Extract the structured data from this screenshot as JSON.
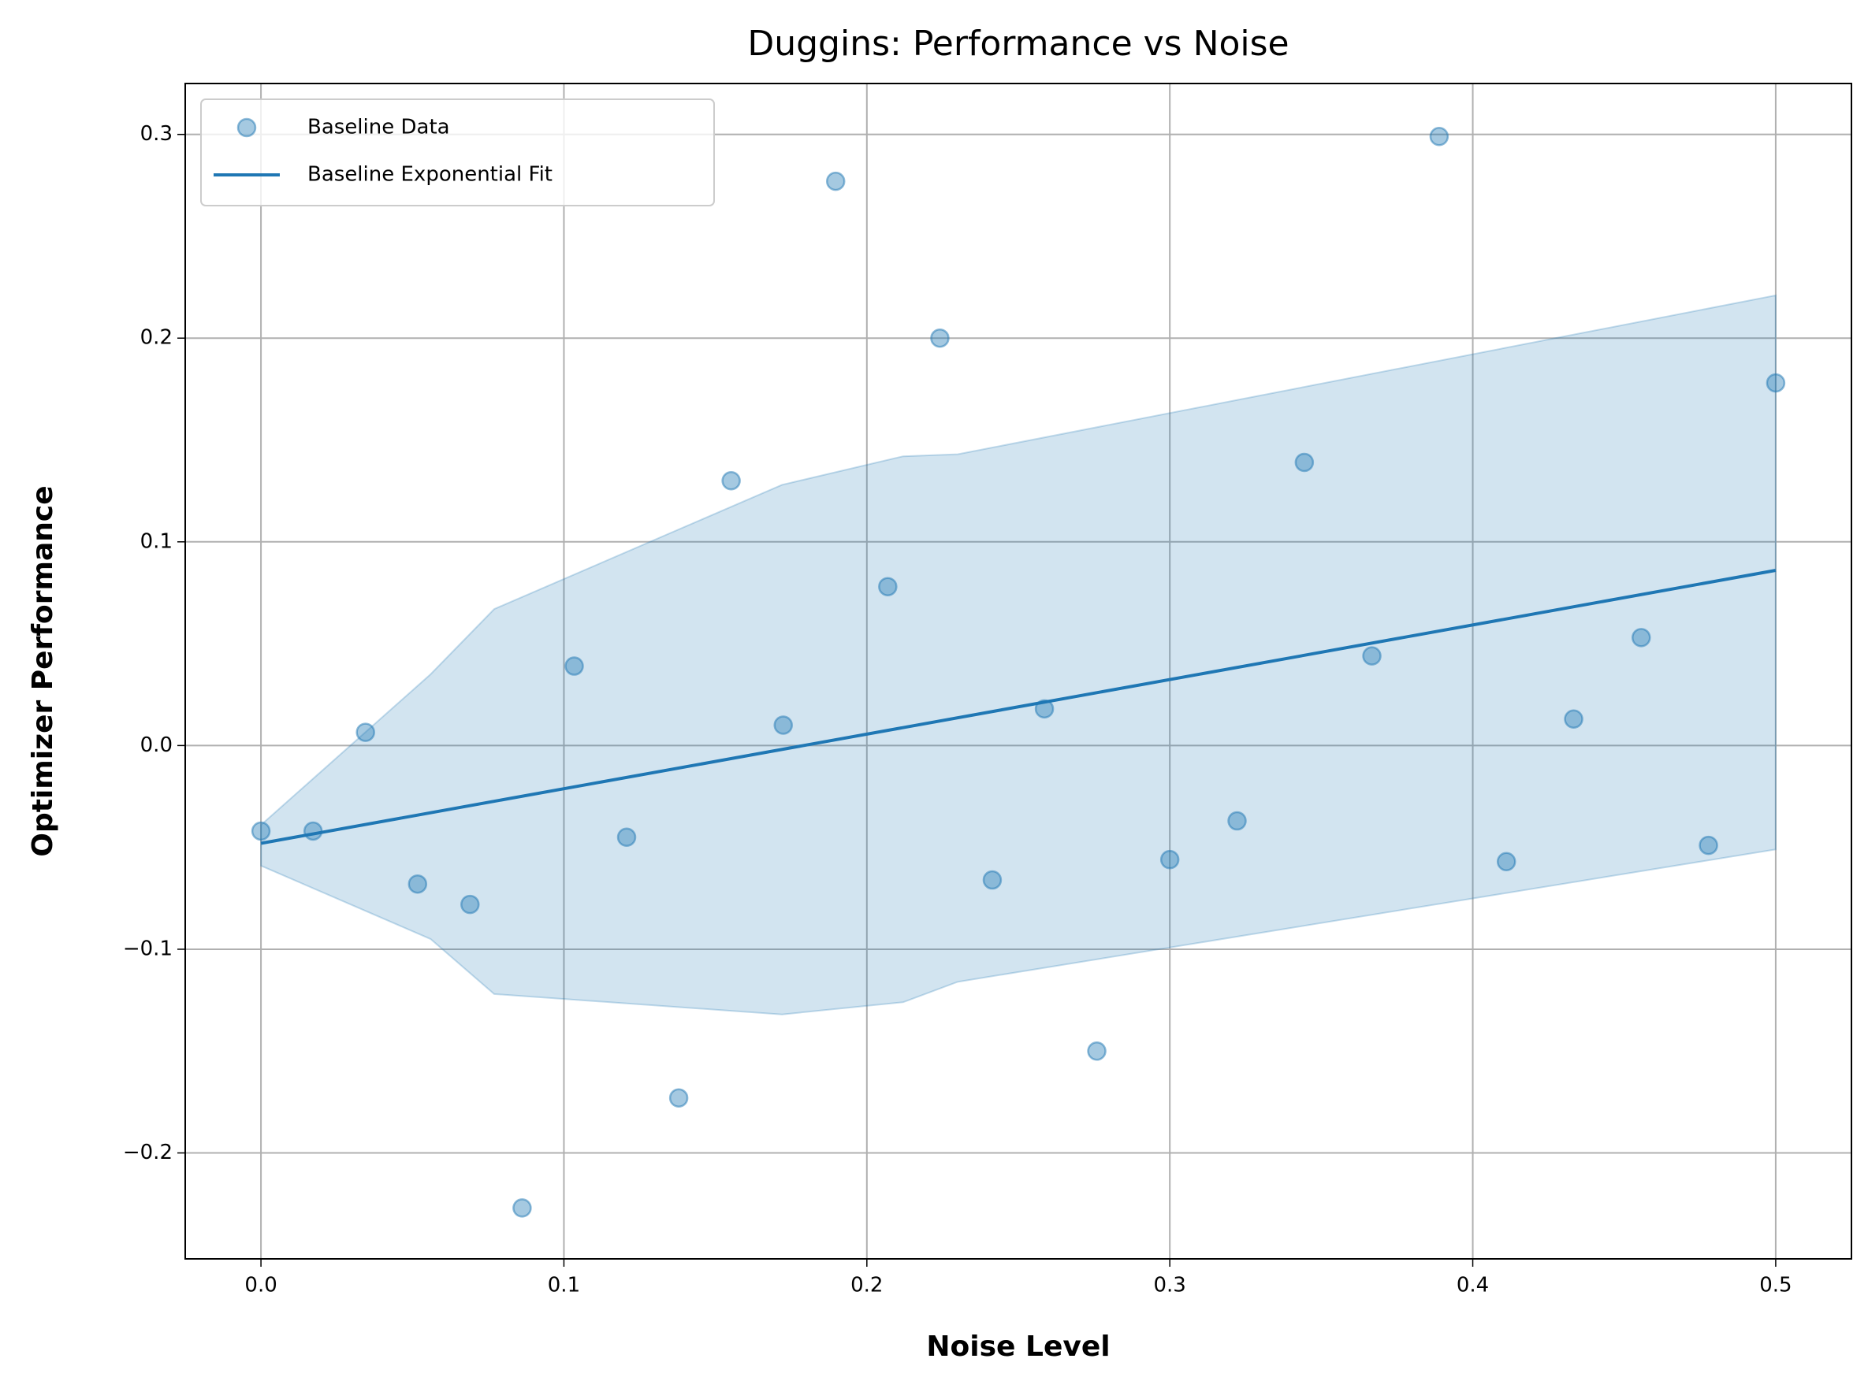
{
  "chart_data": {
    "type": "scatter",
    "title": "Duggins: Performance vs Noise",
    "xlabel": "Noise Level",
    "ylabel": "Optimizer Performance",
    "xlim": [
      -0.025,
      0.525
    ],
    "ylim": [
      -0.252,
      0.325
    ],
    "xticks": [
      {
        "value": 0,
        "label": "0.0"
      },
      0.1,
      0.2,
      0.3,
      0.4,
      0.5
    ],
    "yticks": [
      {
        "value": -0.2,
        "label": "−0.2"
      },
      {
        "value": -0.1,
        "label": "−0.1"
      },
      {
        "value": 0,
        "label": "0.0"
      },
      0.1,
      0.2,
      0.3
    ],
    "grid": true,
    "legend": "upper left",
    "series": [
      {
        "name": "Baseline Data",
        "type": "scatter",
        "color": "#1f77b4",
        "x": [
          0,
          0.0172,
          0.0345,
          0.0517,
          0.069,
          0.0862,
          0.1034,
          0.1207,
          0.1379,
          0.1552,
          0.1724,
          0.1897,
          0.2069,
          0.2241,
          0.2414,
          0.2586,
          0.2759,
          0.3,
          0.3222,
          0.3444,
          0.3667,
          0.3889,
          0.4111,
          0.4333,
          0.4556,
          0.4778,
          0.5
        ],
        "values": [
          -0.042,
          -0.042,
          0.0065,
          -0.068,
          -0.078,
          -0.227,
          0.039,
          -0.045,
          -0.173,
          0.13,
          0.01,
          0.277,
          0.078,
          0.2,
          -0.066,
          0.018,
          -0.15,
          -0.056,
          -0.037,
          0.139,
          0.044,
          0.299,
          -0.057,
          0.013,
          0.053,
          -0.049,
          0.178
        ]
      },
      {
        "name": "Baseline Exponential Fit",
        "type": "line",
        "color": "#1f77b4",
        "x": [
          0,
          0.5
        ],
        "values": [
          -0.048,
          0.086
        ]
      }
    ],
    "band": {
      "color": "#1f77b4",
      "x": [
        0,
        0.056,
        0.077,
        0.172,
        0.212,
        0.23,
        0.5
      ],
      "upper": [
        -0.039,
        0.035,
        0.067,
        0.128,
        0.142,
        0.143,
        0.221
      ],
      "lower": [
        -0.059,
        -0.095,
        -0.122,
        -0.132,
        -0.126,
        -0.116,
        -0.051
      ]
    }
  }
}
